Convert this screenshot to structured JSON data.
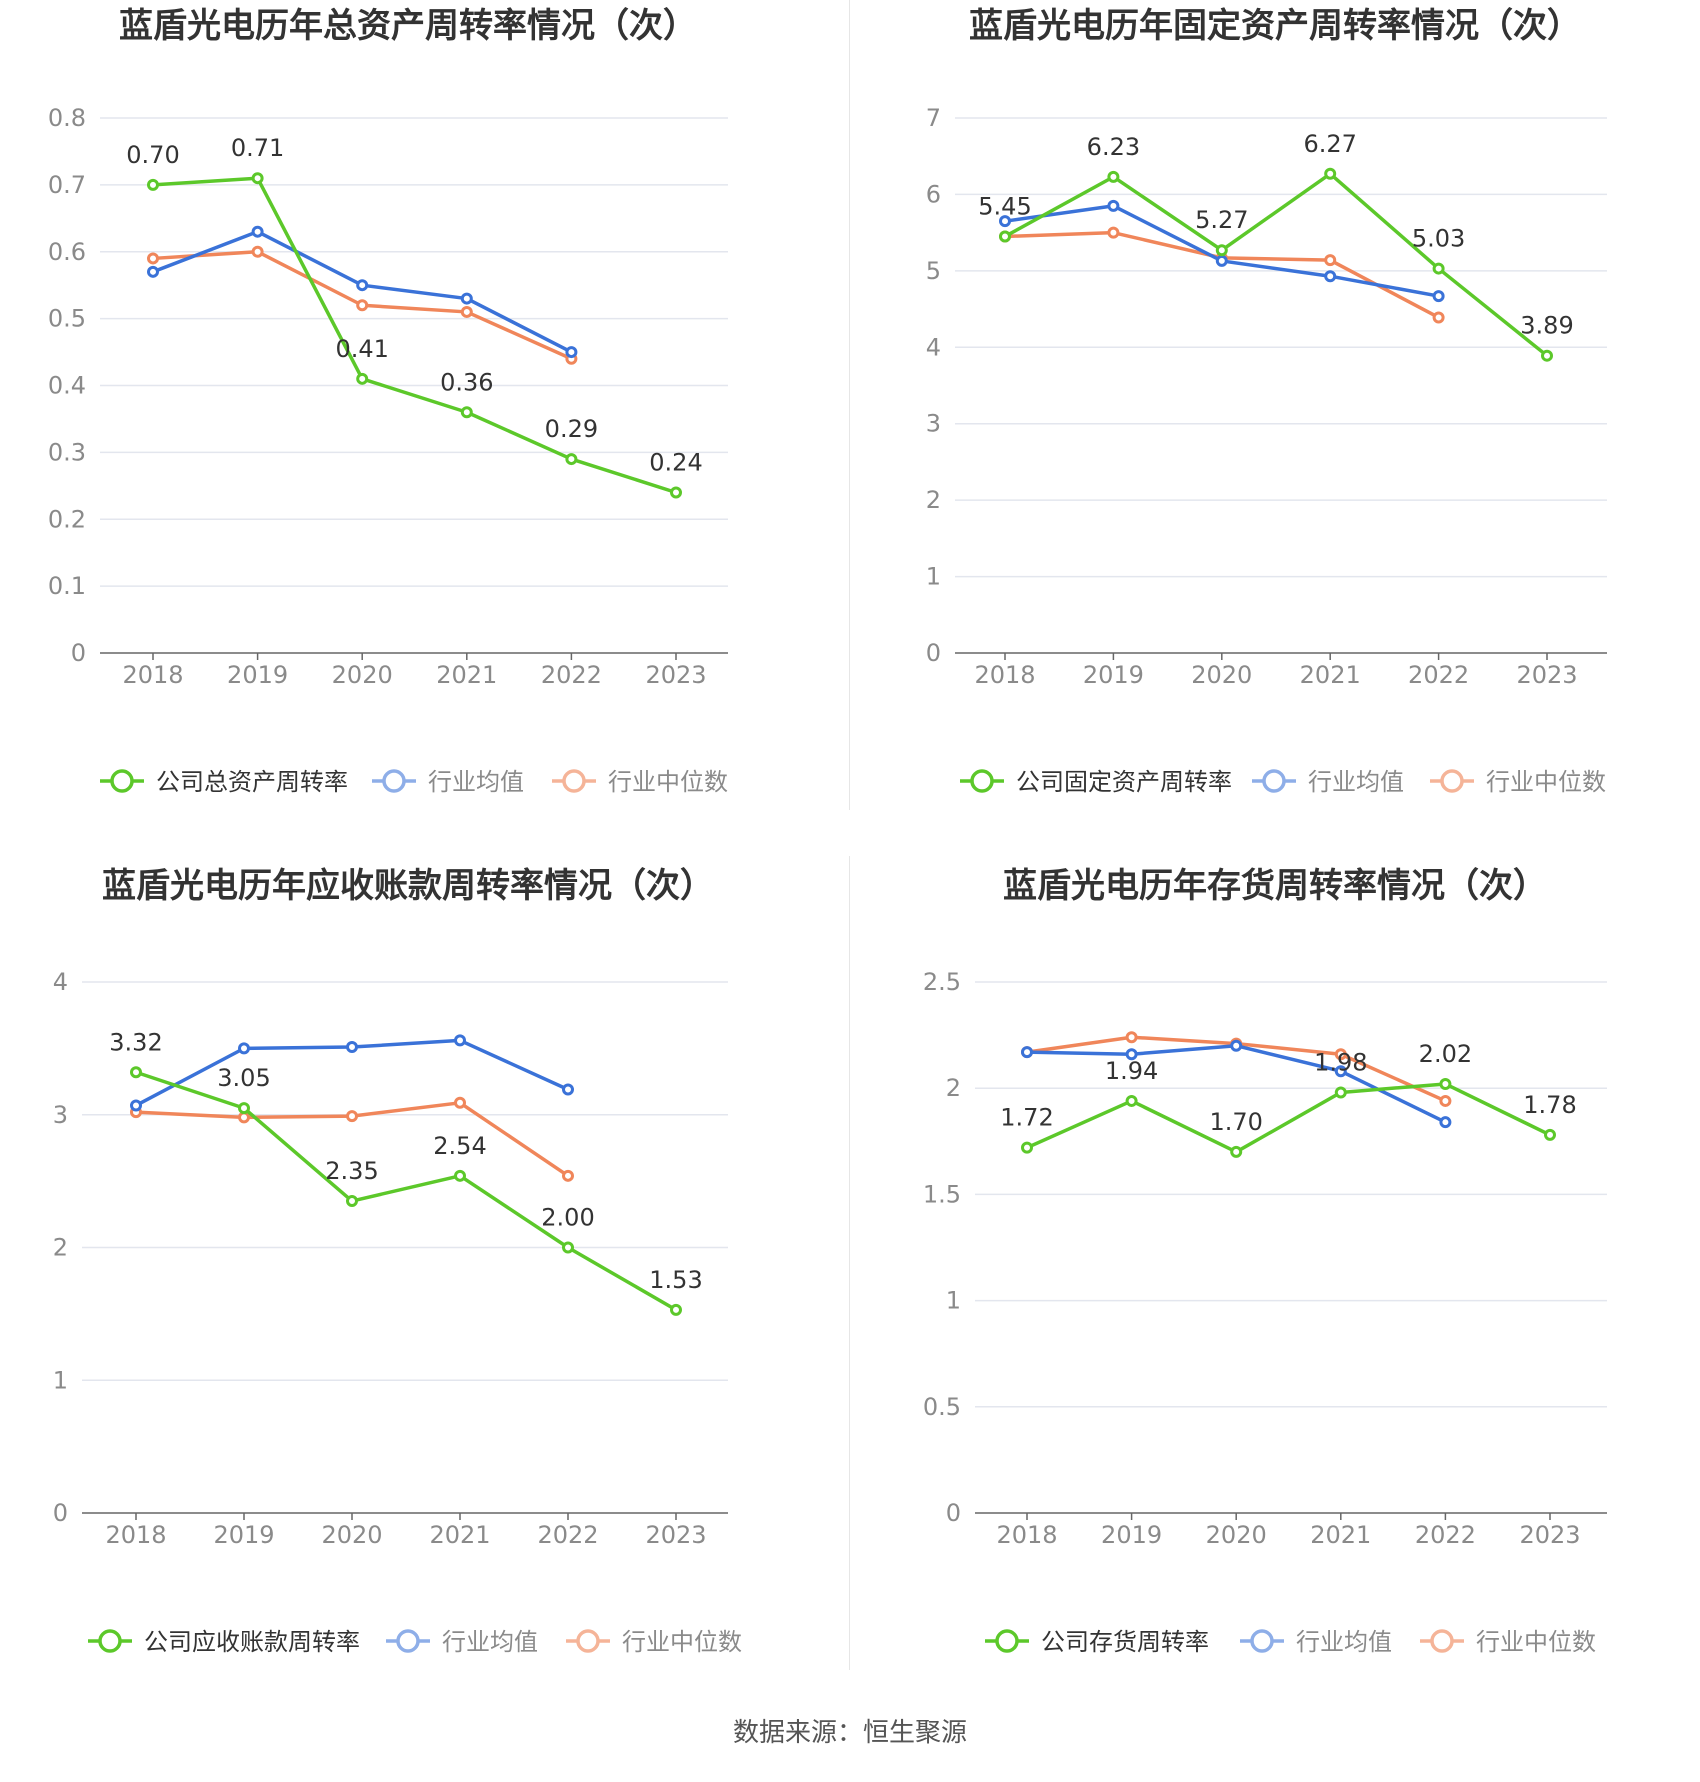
{
  "colors": {
    "company": "#5cc82a",
    "avg": "#3a72d8",
    "median": "#f0865a",
    "legend_inactive_avg": "#8eaee8",
    "legend_inactive_median": "#f5b498"
  },
  "source": "数据来源：恒生聚源",
  "chart_data": [
    {
      "type": "line",
      "title": "蓝盾光电历年总资产周转率情况（次）",
      "categories": [
        "2018",
        "2019",
        "2020",
        "2021",
        "2022",
        "2023"
      ],
      "ylim": [
        0,
        0.8
      ],
      "yticks": [
        0,
        0.1,
        0.2,
        0.3,
        0.4,
        0.5,
        0.6,
        0.7,
        0.8
      ],
      "ytick_labels": [
        "0",
        "0.1",
        "0.2",
        "0.3",
        "0.4",
        "0.5",
        "0.6",
        "0.7",
        "0.8"
      ],
      "series": [
        {
          "name": "公司总资产周转率",
          "values": [
            0.7,
            0.71,
            0.41,
            0.36,
            0.29,
            0.24
          ],
          "labels": [
            "0.70",
            "0.71",
            "0.41",
            "0.36",
            "0.29",
            "0.24"
          ]
        },
        {
          "name": "行业均值",
          "values": [
            0.57,
            0.63,
            0.55,
            0.53,
            0.45,
            null
          ]
        },
        {
          "name": "行业中位数",
          "values": [
            0.59,
            0.6,
            0.52,
            0.51,
            0.44,
            null
          ]
        }
      ],
      "grid": true,
      "legend": "bottom"
    },
    {
      "type": "line",
      "title": "蓝盾光电历年固定资产周转率情况（次）",
      "categories": [
        "2018",
        "2019",
        "2020",
        "2021",
        "2022",
        "2023"
      ],
      "ylim": [
        0,
        7
      ],
      "yticks": [
        0,
        1,
        2,
        3,
        4,
        5,
        6,
        7
      ],
      "ytick_labels": [
        "0",
        "1",
        "2",
        "3",
        "4",
        "5",
        "6",
        "7"
      ],
      "series": [
        {
          "name": "公司固定资产周转率",
          "values": [
            5.45,
            6.23,
            5.27,
            6.27,
            5.03,
            3.89
          ],
          "labels": [
            "5.45",
            "6.23",
            "5.27",
            "6.27",
            "5.03",
            "3.89"
          ]
        },
        {
          "name": "行业均值",
          "values": [
            5.65,
            5.85,
            5.13,
            4.93,
            4.67,
            null
          ]
        },
        {
          "name": "行业中位数",
          "values": [
            5.45,
            5.5,
            5.17,
            5.14,
            4.39,
            null
          ]
        }
      ],
      "grid": true,
      "legend": "bottom"
    },
    {
      "type": "line",
      "title": "蓝盾光电历年应收账款周转率情况（次）",
      "categories": [
        "2018",
        "2019",
        "2020",
        "2021",
        "2022",
        "2023"
      ],
      "ylim": [
        0,
        4
      ],
      "yticks": [
        0,
        1,
        2,
        3,
        4
      ],
      "ytick_labels": [
        "0",
        "1",
        "2",
        "3",
        "4"
      ],
      "series": [
        {
          "name": "公司应收账款周转率",
          "values": [
            3.32,
            3.05,
            2.35,
            2.54,
            2.0,
            1.53
          ],
          "labels": [
            "3.32",
            "3.05",
            "2.35",
            "2.54",
            "2.00",
            "1.53"
          ]
        },
        {
          "name": "行业均值",
          "values": [
            3.07,
            3.5,
            3.51,
            3.56,
            3.19,
            null
          ]
        },
        {
          "name": "行业中位数",
          "values": [
            3.02,
            2.98,
            2.99,
            3.09,
            2.54,
            null
          ]
        }
      ],
      "grid": true,
      "legend": "bottom"
    },
    {
      "type": "line",
      "title": "蓝盾光电历年存货周转率情况（次）",
      "categories": [
        "2018",
        "2019",
        "2020",
        "2021",
        "2022",
        "2023"
      ],
      "ylim": [
        0,
        2.5
      ],
      "yticks": [
        0,
        0.5,
        1,
        1.5,
        2,
        2.5
      ],
      "ytick_labels": [
        "0",
        "0.5",
        "1",
        "1.5",
        "2",
        "2.5"
      ],
      "series": [
        {
          "name": "公司存货周转率",
          "values": [
            1.72,
            1.94,
            1.7,
            1.98,
            2.02,
            1.78
          ],
          "labels": [
            "1.72",
            "1.94",
            "1.70",
            "1.98",
            "2.02",
            "1.78"
          ]
        },
        {
          "name": "行业均值",
          "values": [
            2.17,
            2.16,
            2.2,
            2.08,
            1.84,
            null
          ]
        },
        {
          "name": "行业中位数",
          "values": [
            2.17,
            2.24,
            2.21,
            2.16,
            1.94,
            null
          ]
        }
      ],
      "grid": true,
      "legend": "bottom"
    }
  ]
}
